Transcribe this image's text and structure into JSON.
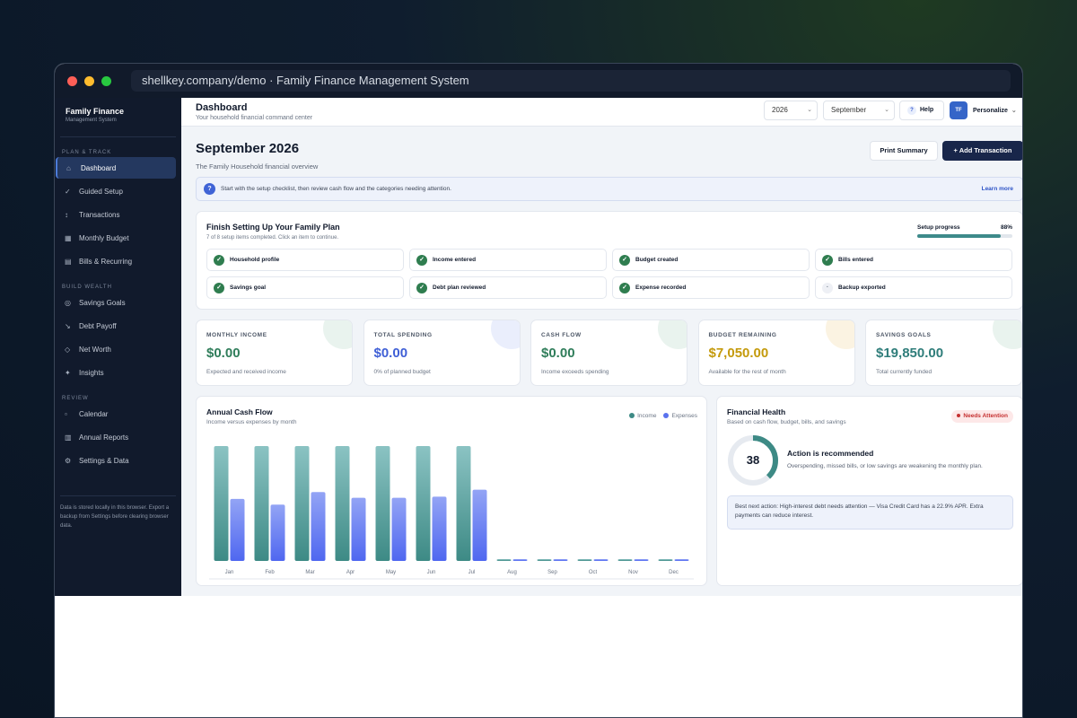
{
  "browser": {
    "url": "shellkey.company/demo · Family Finance Management System"
  },
  "sidebar": {
    "brand_title": "Family Finance",
    "brand_sub": "Management System",
    "sections": [
      {
        "label": "PLAN & TRACK",
        "items": [
          {
            "icon": "⌂",
            "label": "Dashboard"
          },
          {
            "icon": "✓",
            "label": "Guided Setup"
          },
          {
            "icon": "↕",
            "label": "Transactions"
          },
          {
            "icon": "▦",
            "label": "Monthly Budget"
          },
          {
            "icon": "▤",
            "label": "Bills & Recurring"
          }
        ]
      },
      {
        "label": "BUILD WEALTH",
        "items": [
          {
            "icon": "◎",
            "label": "Savings Goals"
          },
          {
            "icon": "↘",
            "label": "Debt Payoff"
          },
          {
            "icon": "◇",
            "label": "Net Worth"
          },
          {
            "icon": "✦",
            "label": "Insights"
          }
        ]
      },
      {
        "label": "REVIEW",
        "items": [
          {
            "icon": "▫",
            "label": "Calendar"
          },
          {
            "icon": "▥",
            "label": "Annual Reports"
          },
          {
            "icon": "⚙",
            "label": "Settings & Data"
          }
        ]
      }
    ],
    "note": "Data is stored locally in this browser. Export a backup from Settings before clearing browser data."
  },
  "topbar": {
    "title": "Dashboard",
    "subtitle": "Your household financial command center",
    "year": "2026",
    "month": "September",
    "help": "Help",
    "avatar": "TF",
    "personalize": "Personalize"
  },
  "page": {
    "title": "September 2026",
    "subtitle": "The Family Household financial overview",
    "print_button": "Print Summary",
    "add_button": "+ Add Transaction"
  },
  "info": {
    "text": "Start with the setup checklist, then review cash flow and the categories needing attention.",
    "link": "Learn more"
  },
  "setup": {
    "title": "Finish Setting Up Your Family Plan",
    "subtitle": "7 of 8 setup items completed. Click an item to continue.",
    "progress_label": "Setup progress",
    "progress_text": "88%",
    "progress": 0.88,
    "tasks": [
      {
        "label": "Household profile",
        "done": true
      },
      {
        "label": "Income entered",
        "done": true
      },
      {
        "label": "Budget created",
        "done": true
      },
      {
        "label": "Bills entered",
        "done": true
      },
      {
        "label": "Savings goal",
        "done": true
      },
      {
        "label": "Debt plan reviewed",
        "done": true
      },
      {
        "label": "Expense recorded",
        "done": true
      },
      {
        "label": "Backup exported",
        "done": false
      }
    ]
  },
  "stats": [
    {
      "label": "MONTHLY INCOME",
      "value": "$0.00",
      "sub": "Expected and received income",
      "color": "#2f7d5a",
      "blob": "#e9f3ee"
    },
    {
      "label": "TOTAL SPENDING",
      "value": "$0.00",
      "sub": "0% of planned budget",
      "color": "#3f5fd6",
      "blob": "#eaeefc"
    },
    {
      "label": "CASH FLOW",
      "value": "$0.00",
      "sub": "Income exceeds spending",
      "color": "#2f7d5a",
      "blob": "#e9f3ee"
    },
    {
      "label": "BUDGET REMAINING",
      "value": "$7,050.00",
      "sub": "Available for the rest of month",
      "color": "#c49a0c",
      "blob": "#fbf3e2"
    },
    {
      "label": "SAVINGS GOALS",
      "value": "$19,850.00",
      "sub": "Total currently funded",
      "color": "#2f7d7a",
      "blob": "#e9f3ee"
    }
  ],
  "cashflow": {
    "title": "Annual Cash Flow",
    "subtitle": "Income versus expenses by month",
    "legend_income": "Income",
    "legend_expenses": "Expenses",
    "colors": {
      "income": "#3d8a85",
      "expenses": "#5a72ee"
    }
  },
  "chart_data": {
    "type": "bar",
    "categories": [
      "Jan",
      "Feb",
      "Mar",
      "Apr",
      "May",
      "Jun",
      "Jul",
      "Aug",
      "Sep",
      "Oct",
      "Nov",
      "Dec"
    ],
    "series": [
      {
        "name": "Income",
        "values": [
          100,
          100,
          100,
          100,
          100,
          100,
          100,
          0,
          0,
          0,
          0,
          0
        ]
      },
      {
        "name": "Expenses",
        "values": [
          54,
          49,
          60,
          55,
          55,
          56,
          62,
          0,
          0,
          0,
          0,
          0
        ]
      }
    ],
    "title": "Annual Cash Flow",
    "ylim": [
      0,
      100
    ],
    "grid": false,
    "legend": "top-right"
  },
  "health": {
    "title": "Financial Health",
    "subtitle": "Based on cash flow, budget, bills, and savings",
    "badge": "Needs Attention",
    "score": "38",
    "score_value": 38,
    "action_title": "Action is recommended",
    "action_text": "Overspending, missed bills, or low savings are weakening the monthly plan.",
    "tip": "Best next action: High-interest debt needs attention — Visa Credit Card has a 22.9% APR. Extra payments can reduce interest."
  }
}
